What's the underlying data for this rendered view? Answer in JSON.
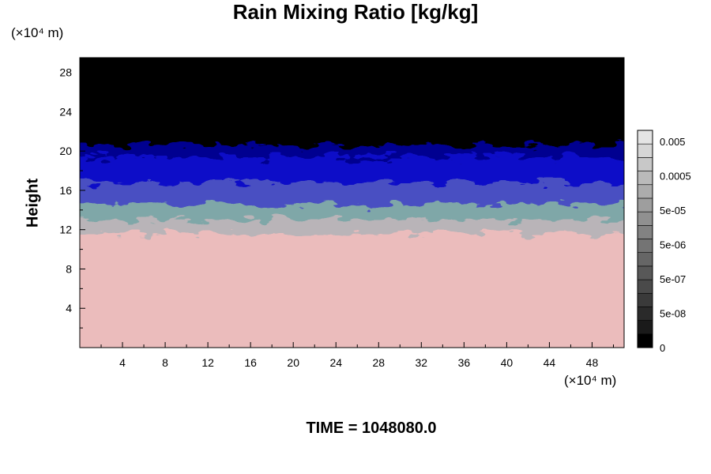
{
  "title": "Rain Mixing Ratio [kg/kg]",
  "time_label": "TIME = 1048080.0",
  "chart_data": {
    "type": "heatmap",
    "title": "Rain Mixing Ratio [kg/kg]",
    "ylabel": "Height",
    "xlabel": "",
    "y_unit": "(×10⁴ m)",
    "x_unit": "(×10⁴ m)",
    "xlim": [
      0,
      51
    ],
    "ylim": [
      0,
      29.5
    ],
    "x_ticks": [
      "4",
      "8",
      "12",
      "16",
      "20",
      "24",
      "28",
      "32",
      "36",
      "40",
      "44",
      "48"
    ],
    "y_ticks": [
      "4",
      "8",
      "12",
      "16",
      "20",
      "24",
      "28"
    ],
    "colorbar": {
      "labels": [
        "0.005",
        "0.0005",
        "5e-05",
        "5e-06",
        "5e-07",
        "5e-08",
        "0"
      ],
      "colors": [
        "#000000",
        "#1a1a1a",
        "#2a2a2a",
        "#3a3a3a",
        "#4a4a4a",
        "#585858",
        "#666666",
        "#747474",
        "#828282",
        "#909090",
        "#9e9e9e",
        "#acacac",
        "#bababa",
        "#c8c8c8",
        "#d6d6d6",
        "#e4e4e4"
      ]
    },
    "field_layers": [
      {
        "name": "pink-base",
        "color": "#ebbcbc",
        "top": 10.8
      },
      {
        "name": "grey-band",
        "color": "#b9b4b8",
        "top": 12.2
      },
      {
        "name": "teal-band",
        "color": "#7fa7a8",
        "top": 13.8
      },
      {
        "name": "blue-band",
        "color": "#4a4fc2",
        "top": 16.0
      },
      {
        "name": "deep-blue",
        "color": "#1010c8",
        "top": 18.6
      },
      {
        "name": "dark-navy",
        "color": "#000090",
        "top": 19.8
      },
      {
        "name": "black-top",
        "color": "#000000",
        "top": 29.5
      }
    ]
  }
}
